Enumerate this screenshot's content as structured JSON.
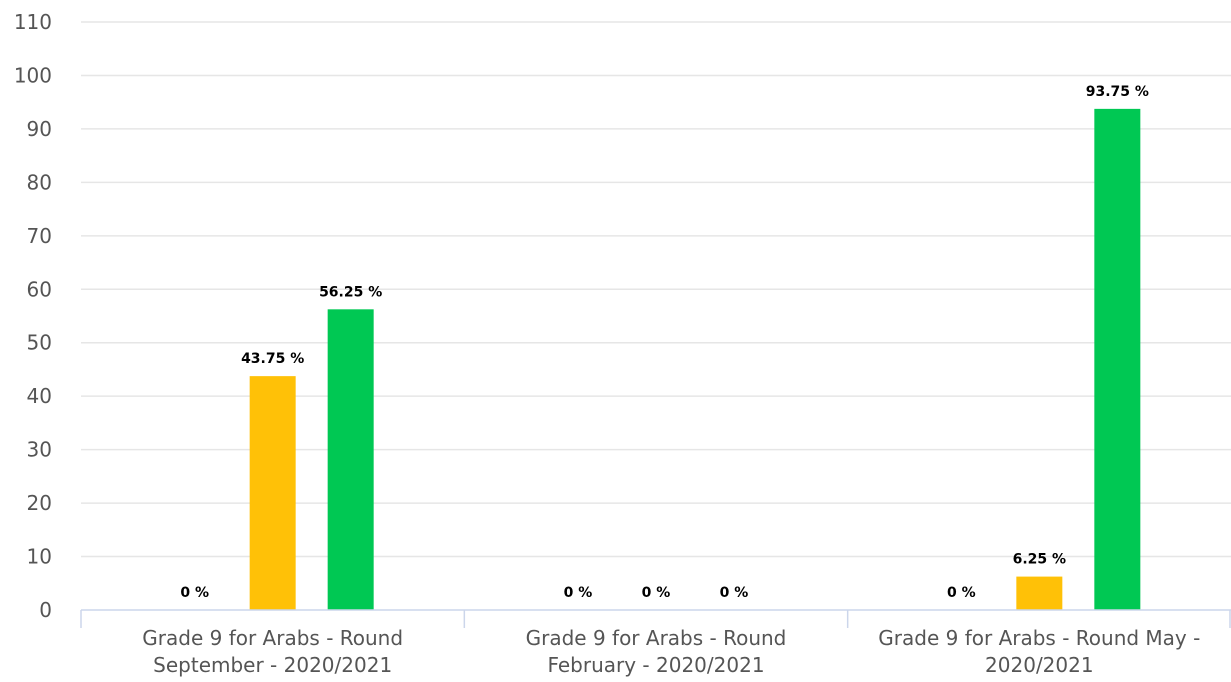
{
  "chart_data": {
    "type": "bar",
    "categories": [
      "Grade 9 for Arabs - Round September - 2020/2021",
      "Grade 9 for Arabs - Round February - 2020/2021",
      "Grade 9 for Arabs - Round May - 2020/2021"
    ],
    "category_lines": [
      [
        "Grade 9 for Arabs - Round",
        "September - 2020/2021"
      ],
      [
        "Grade 9 for Arabs - Round",
        "February - 2020/2021"
      ],
      [
        "Grade 9 for Arabs - Round May -",
        "2020/2021"
      ]
    ],
    "series": [
      {
        "color": "#e53935",
        "values": [
          0,
          0,
          0
        ],
        "labels": [
          "0 %",
          "0 %",
          "0 %"
        ]
      },
      {
        "color": "#ffc107",
        "values": [
          43.75,
          0,
          6.25
        ],
        "labels": [
          "43.75 %",
          "0 %",
          "6.25 %"
        ]
      },
      {
        "color": "#00c853",
        "values": [
          56.25,
          0,
          93.75
        ],
        "labels": [
          "56.25 %",
          "0 %",
          "93.75 %"
        ]
      }
    ],
    "ylim": [
      0,
      110
    ],
    "yticks": [
      0,
      10,
      20,
      30,
      40,
      50,
      60,
      70,
      80,
      90,
      100,
      110
    ],
    "grid": true,
    "legend": "none"
  }
}
